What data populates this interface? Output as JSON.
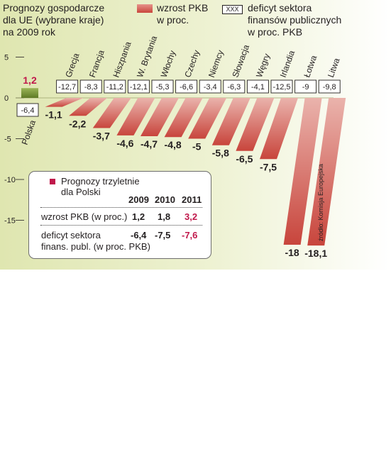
{
  "header": {
    "title_lines": [
      "Prognozy gospodarcze",
      "dla UE (wybrane kraje)",
      "na 2009 rok"
    ],
    "legend_growth_label": "wzrost PKB\nw proc.",
    "legend_deficit_box": "XXX",
    "legend_deficit_lines": [
      "deficyt sektora",
      "finansów publicznych",
      "w proc. PKB"
    ]
  },
  "source": "źródło: Komisja Europejska",
  "colors": {
    "growth_bar_top": "#e8a199",
    "growth_bar_bottom": "#c8453c",
    "positive_bar": "#7f9a3c",
    "highlight_red": "#c0184b",
    "background": "#e3e9bb"
  },
  "chart_data": {
    "type": "bar",
    "title": "Prognozy gospodarcze dla UE (wybrane kraje) na 2009 rok",
    "categories": [
      "Polska",
      "Grecja",
      "Francja",
      "Hiszpania",
      "W. Brytania",
      "Włochy",
      "Czechy",
      "Niemcy",
      "Słowacja",
      "Węgry",
      "Irlandia",
      "Łotwa",
      "Litwa"
    ],
    "series": [
      {
        "name": "wzrost PKB w proc.",
        "values": [
          1.2,
          -1.1,
          -2.2,
          -3.7,
          -4.6,
          -4.7,
          -4.8,
          -5,
          -5.8,
          -6.5,
          -7.5,
          -18,
          -18.1
        ],
        "labels": [
          "1,2",
          "-1,1",
          "-2,2",
          "-3,7",
          "-4,6",
          "-4,7",
          "-4,8",
          "-5",
          "-5,8",
          "-6,5",
          "-7,5",
          "-18",
          "-18,1"
        ]
      },
      {
        "name": "deficyt sektora finansów publicznych w proc. PKB",
        "values": [
          -6.4,
          -12.7,
          -8.3,
          -11.2,
          -12.1,
          -5.3,
          -6.6,
          -3.4,
          -6.3,
          -4.1,
          -12.5,
          -9,
          -9.8
        ],
        "labels": [
          "-6,4",
          "-12,7",
          "-8,3",
          "-11,2",
          "-12,1",
          "-5,3",
          "-6,6",
          "-3,4",
          "-6,3",
          "-4,1",
          "-12,5",
          "-9",
          "-9,8"
        ]
      }
    ],
    "y_ticks": [
      5,
      0,
      -5,
      -10,
      -15
    ],
    "y_tick_labels": [
      "5",
      "0",
      "-5",
      "-10",
      "-15"
    ],
    "ylim": [
      -19,
      7
    ]
  },
  "inset": {
    "title_lines": [
      "Prognozy trzyletnie",
      "dla Polski"
    ],
    "years": [
      "2009",
      "2010",
      "2011"
    ],
    "rows": [
      {
        "label_lines": [
          "wzrost PKB (w proc.)"
        ],
        "values": [
          "1,2",
          "1,8",
          "3,2"
        ]
      },
      {
        "label_lines": [
          "deficyt sektora",
          "finans. publ. (w proc. PKB)"
        ],
        "values": [
          "-6,4",
          "-7,5",
          "-7,6"
        ]
      }
    ]
  }
}
